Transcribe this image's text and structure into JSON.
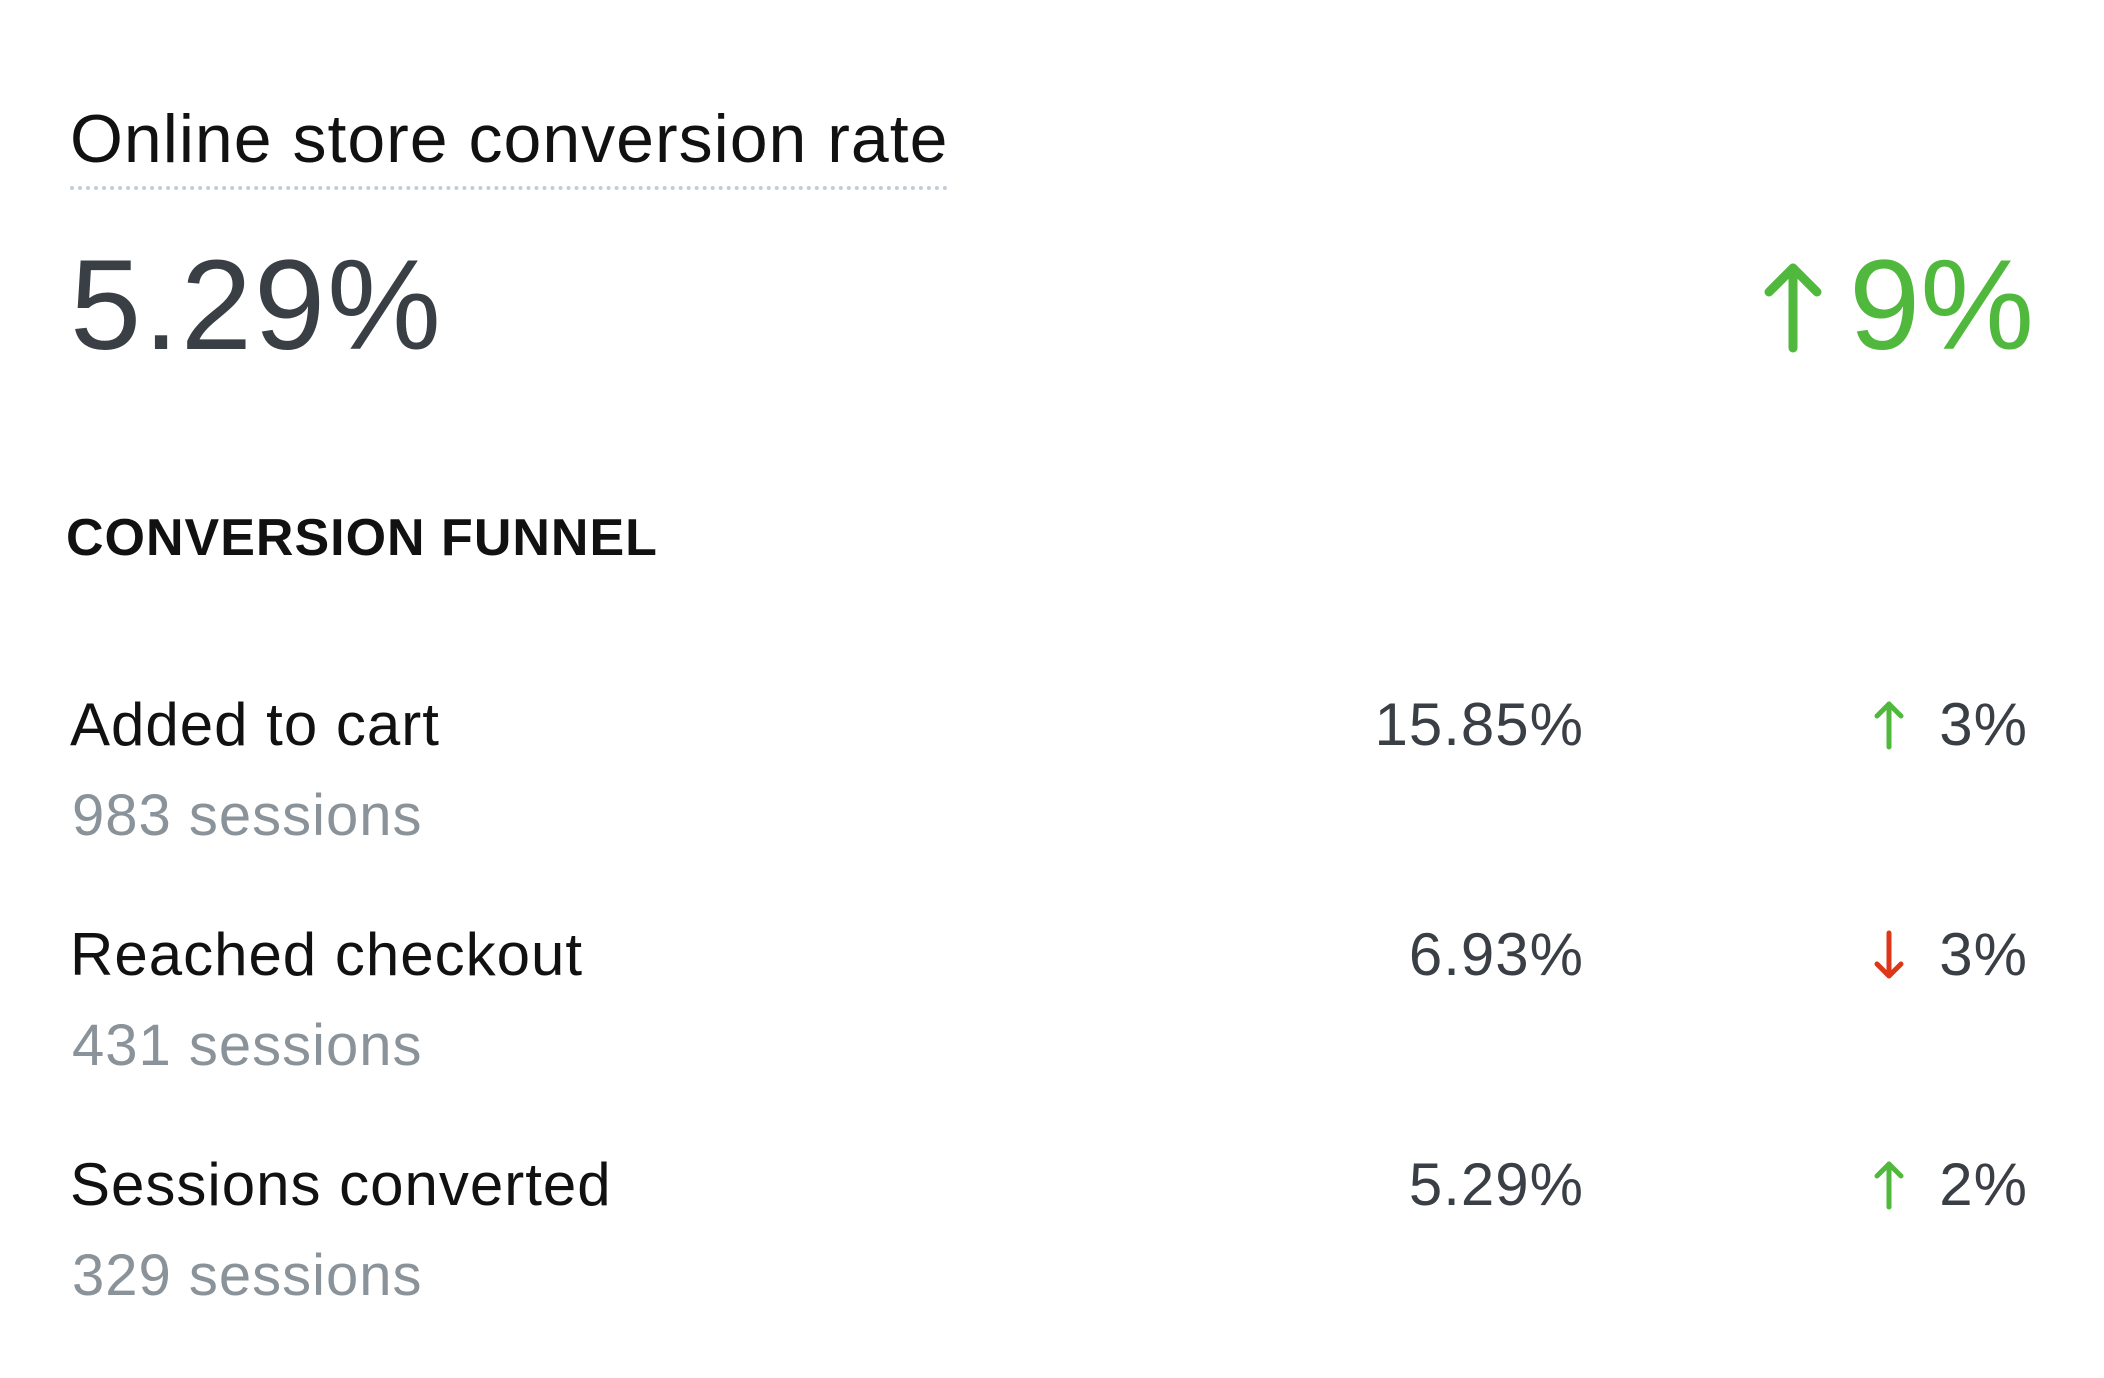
{
  "metric": {
    "title": "Online store conversion rate",
    "value": "5.29%",
    "change": {
      "direction": "up",
      "value": "9%",
      "icon": "arrow-up-icon",
      "color": "#50b83c"
    }
  },
  "funnel": {
    "heading": "CONVERSION FUNNEL",
    "steps": [
      {
        "label": "Added to cart",
        "sessions": "983 sessions",
        "rate": "15.85%",
        "change": {
          "direction": "up",
          "value": "3%",
          "icon": "arrow-up-icon",
          "color": "#50b83c"
        }
      },
      {
        "label": "Reached checkout",
        "sessions": "431 sessions",
        "rate": "6.93%",
        "change": {
          "direction": "down",
          "value": "3%",
          "icon": "arrow-down-icon",
          "color": "#de3618"
        }
      },
      {
        "label": "Sessions converted",
        "sessions": "329 sessions",
        "rate": "5.29%",
        "change": {
          "direction": "up",
          "value": "2%",
          "icon": "arrow-up-icon",
          "color": "#50b83c"
        }
      }
    ]
  }
}
